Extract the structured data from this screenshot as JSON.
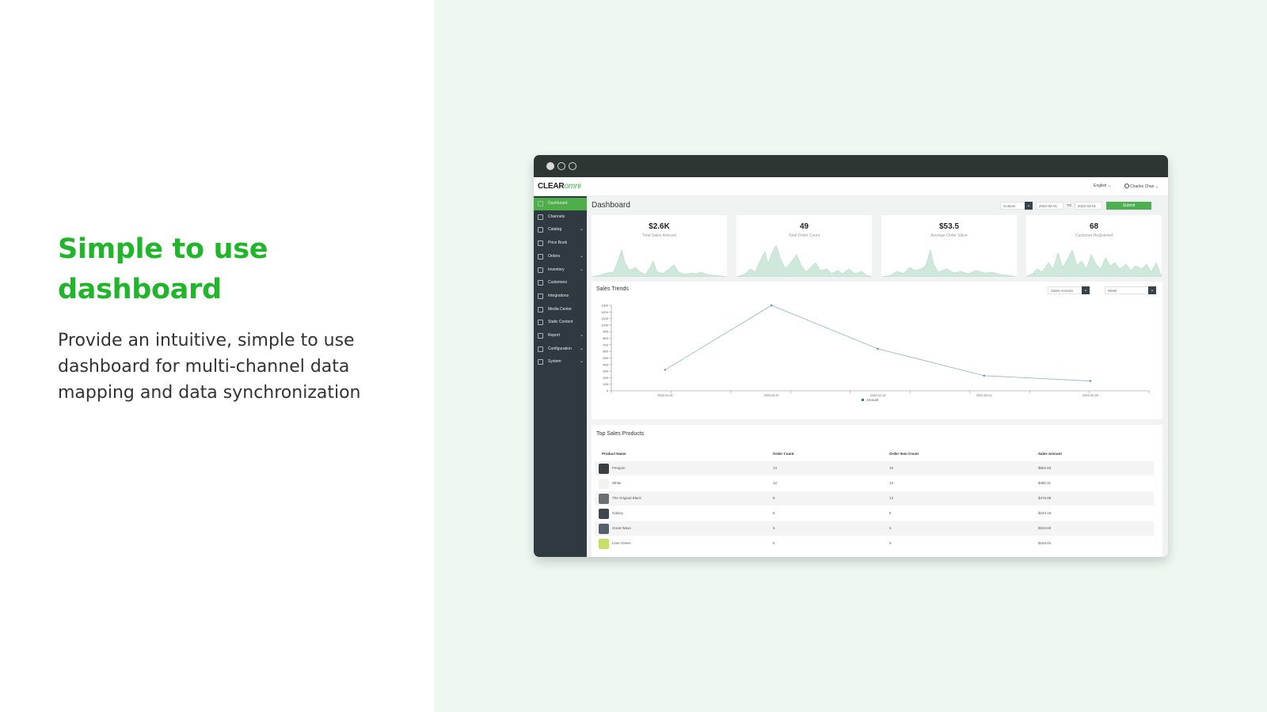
{
  "slide": {
    "headline": "Simple to use dashboard",
    "subtext": "Provide an intuitive, simple to use dashboard for multi-channel data mapping and data synchronization"
  },
  "colors": {
    "accent": "#20b52a",
    "panel_bg": "#eef8f1",
    "sidebar_bg": "#2e3a40",
    "active_green": "#4fae4a",
    "chart_fill": "#cfe8dc",
    "line_color": "#8fb3c9"
  },
  "app": {
    "logo_main": "CLEAR",
    "logo_accent": "omni",
    "language": "English",
    "user": "Charles Chan",
    "page_title": "Dashboard",
    "range_select": "Custom",
    "date_from": "2022-02-01",
    "date_to_label": "TO",
    "date_to": "2022-03-01",
    "submit_label": "Submit"
  },
  "sidebar": {
    "items": [
      {
        "label": "Dashboard",
        "icon": "dashboard-icon",
        "expandable": false,
        "active": true
      },
      {
        "label": "Channels",
        "icon": "channels-icon",
        "expandable": false
      },
      {
        "label": "Catalog",
        "icon": "catalog-icon",
        "expandable": true
      },
      {
        "label": "Price Book",
        "icon": "price-book-icon",
        "expandable": false
      },
      {
        "label": "Orders",
        "icon": "orders-icon",
        "expandable": true
      },
      {
        "label": "Inventory",
        "icon": "inventory-icon",
        "expandable": true
      },
      {
        "label": "Customers",
        "icon": "customers-icon",
        "expandable": false
      },
      {
        "label": "Integrations",
        "icon": "integrations-icon",
        "expandable": false
      },
      {
        "label": "Media Center",
        "icon": "media-center-icon",
        "expandable": false
      },
      {
        "label": "Static Content",
        "icon": "static-content-icon",
        "expandable": false
      },
      {
        "label": "Report",
        "icon": "report-icon",
        "expandable": true
      },
      {
        "label": "Configuration",
        "icon": "configuration-icon",
        "expandable": true
      },
      {
        "label": "System",
        "icon": "system-icon",
        "expandable": true
      }
    ]
  },
  "kpis": [
    {
      "value": "$2.6K",
      "label": "Total Sales Amount"
    },
    {
      "value": "49",
      "label": "Total Order Count"
    },
    {
      "value": "$53.5",
      "label": "Average Order Value"
    },
    {
      "value": "68",
      "label": "Customer Registered"
    }
  ],
  "sales_trends": {
    "title": "Sales Trends",
    "metric_select": "Sales Amount",
    "period_select": "Week",
    "legend": "Amount"
  },
  "chart_data": {
    "type": "line",
    "title": "Sales Trends",
    "x": [
      "2022-01-31",
      "2022-02-07",
      "2022-02-14",
      "2022-02-21",
      "2022-02-28"
    ],
    "x_tick_labels": [
      "2022-01-31",
      "2022-02-07",
      "2022-02-14",
      "2022-02-21",
      "2022-02-28"
    ],
    "series": [
      {
        "name": "Amount",
        "values": [
          320,
          1300,
          640,
          230,
          150
        ]
      }
    ],
    "ylim": [
      0,
      1300
    ],
    "yticks": [
      0,
      100,
      200,
      300,
      400,
      500,
      600,
      700,
      800,
      900,
      1000,
      1100,
      1200,
      1300
    ],
    "grid": false,
    "legend_position": "bottom"
  },
  "top_products": {
    "title": "Top Sales Products",
    "columns": [
      "Product Name",
      "Order Count",
      "Order Item Count",
      "Sales Amount"
    ],
    "rows": [
      {
        "name": "Penguin",
        "order_count": "13",
        "item_count": "15",
        "sales": "$552.63",
        "thumb": "#3a3f44"
      },
      {
        "name": "White",
        "order_count": "12",
        "item_count": "13",
        "sales": "$480.11",
        "thumb": "#f2f2f2"
      },
      {
        "name": "The Original Black",
        "order_count": "8",
        "item_count": "13",
        "sales": "$475.89",
        "thumb": "#6c6f72"
      },
      {
        "name": "Galaxy",
        "order_count": "6",
        "item_count": "6",
        "sales": "$223.16",
        "thumb": "#40464d"
      },
      {
        "name": "Great Wave",
        "order_count": "5",
        "item_count": "5",
        "sales": "$184.60",
        "thumb": "#55606b"
      },
      {
        "name": "Lime Green",
        "order_count": "5",
        "item_count": "5",
        "sales": "$184.01",
        "thumb": "#c6df6a"
      }
    ]
  }
}
